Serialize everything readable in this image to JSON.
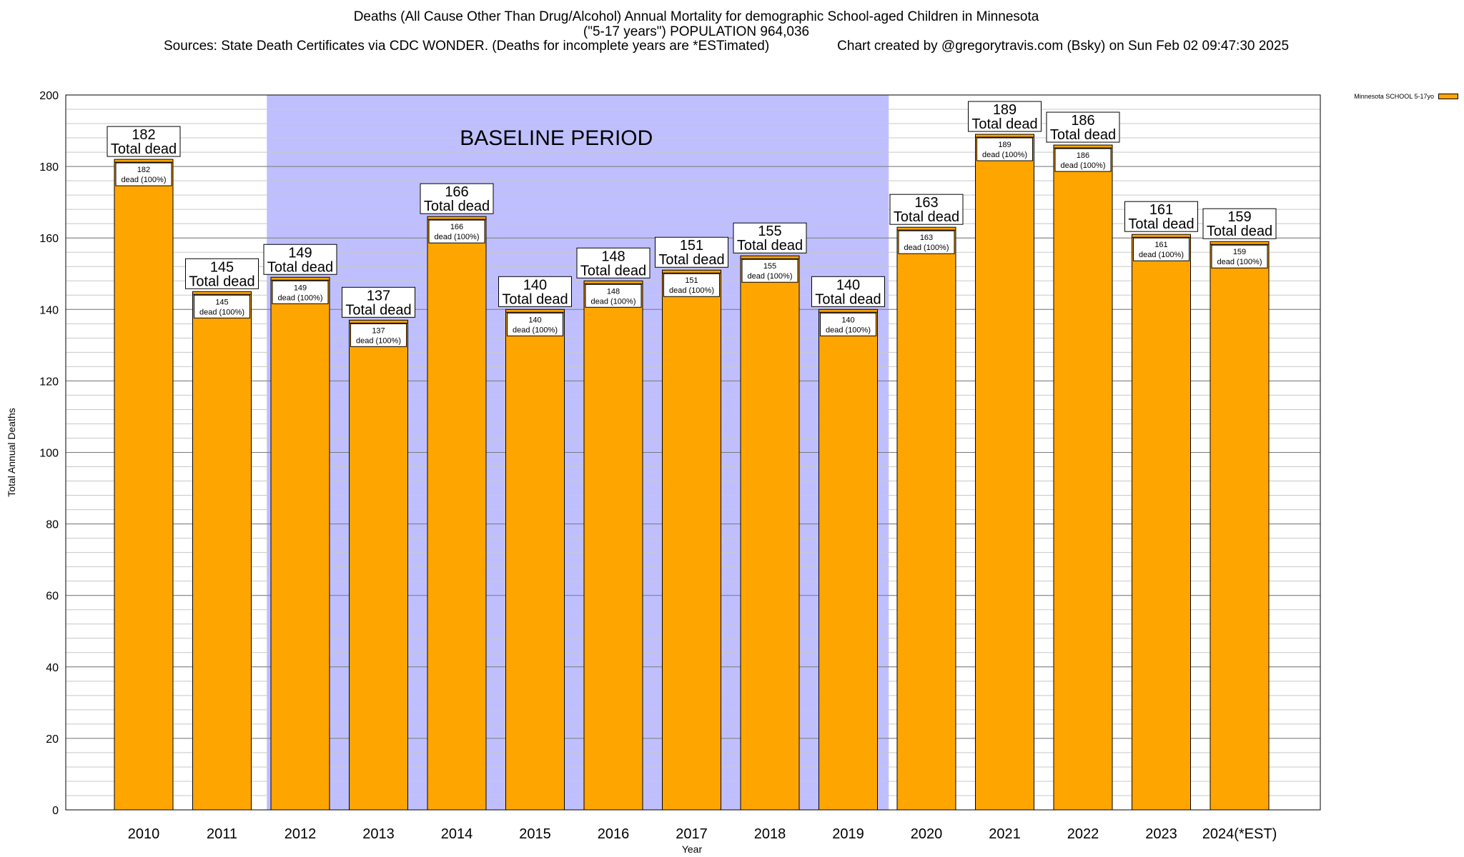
{
  "chart_data": {
    "type": "bar",
    "title": "Deaths (All Cause Other Than Drug/Alcohol) Annual Mortality for demographic School-aged Children in Minnesota",
    "subtitle": "(\"5-17 years\") POPULATION 964,036",
    "source": "Sources: State Death Certificates via CDC WONDER. (Deaths for incomplete years are *ESTimated)",
    "credit": "Chart created by @gregorytravis.com (Bsky) on Sun Feb 02 09:47:30 2025",
    "xlabel": "Year",
    "ylabel": "Total Annual Deaths",
    "ylim": [
      0,
      200
    ],
    "yticks": [
      0,
      20,
      40,
      60,
      80,
      100,
      120,
      140,
      160,
      180,
      200
    ],
    "categories": [
      "2010",
      "2011",
      "2012",
      "2013",
      "2014",
      "2015",
      "2016",
      "2017",
      "2018",
      "2019",
      "2020",
      "2021",
      "2022",
      "2023",
      "2024(*EST)"
    ],
    "series": [
      {
        "name": "Minnesota SCHOOL 5-17yo",
        "color": "#FFA500",
        "values": [
          182,
          145,
          149,
          137,
          166,
          140,
          148,
          151,
          155,
          140,
          163,
          189,
          186,
          161,
          159
        ]
      }
    ],
    "total_label": "Total dead",
    "bar_label_suffix": "dead (100%)",
    "baseline": {
      "label": "BASELINE PERIOD",
      "from_category": "2012",
      "to_category": "2019",
      "color": "#BFBFFF"
    },
    "legend_position": "top-right"
  }
}
